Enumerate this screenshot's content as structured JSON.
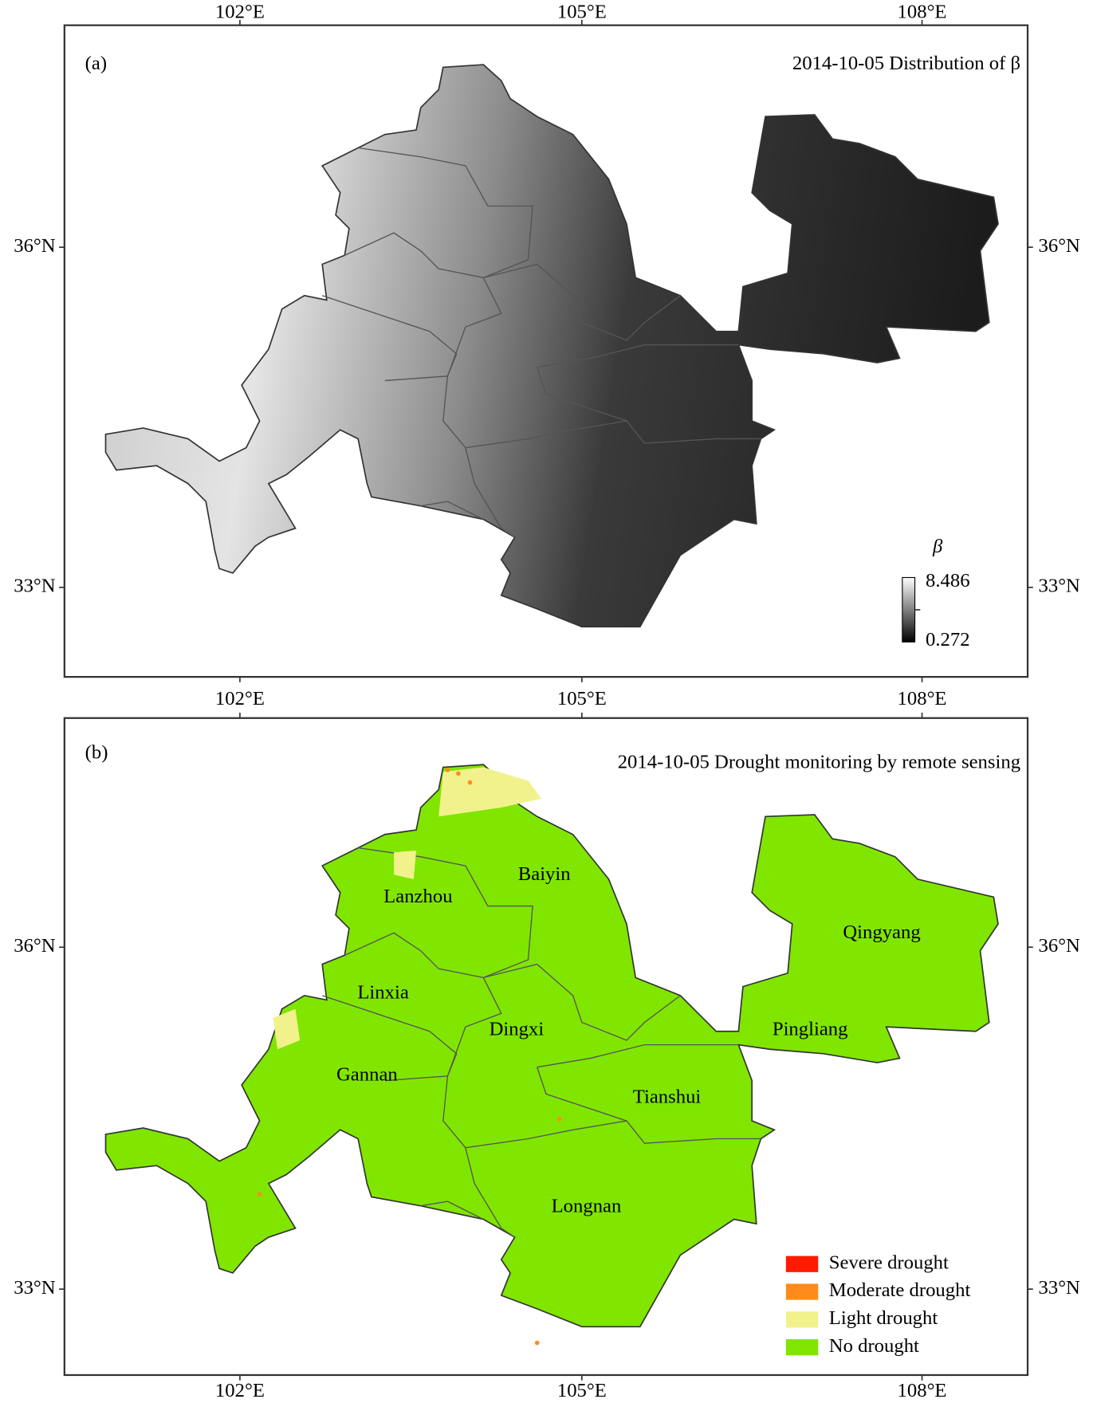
{
  "axes": {
    "longitudes": [
      "102°E",
      "105°E",
      "108°E"
    ],
    "latitudes": [
      "36°N",
      "33°N"
    ]
  },
  "panels": [
    {
      "label": "(a)",
      "title": "2014-10-05 Distribution of β",
      "colorbar": {
        "label": "β",
        "max": 8.486,
        "min": 0.272
      }
    },
    {
      "label": "(b)",
      "title": "2014-10-05 Drought monitoring by remote sensing",
      "regions": [
        "Baiyin",
        "Lanzhou",
        "Qingyang",
        "Linxia",
        "Dingxi",
        "Pingliang",
        "Gannan",
        "Tianshui",
        "Longnan"
      ],
      "legend": [
        {
          "name": "Severe drought",
          "color": "#ff1a00"
        },
        {
          "name": "Moderate drought",
          "color": "#ff8c1a"
        },
        {
          "name": "Light drought",
          "color": "#f2f28c"
        },
        {
          "name": "No drought",
          "color": "#80e600"
        }
      ]
    }
  ]
}
